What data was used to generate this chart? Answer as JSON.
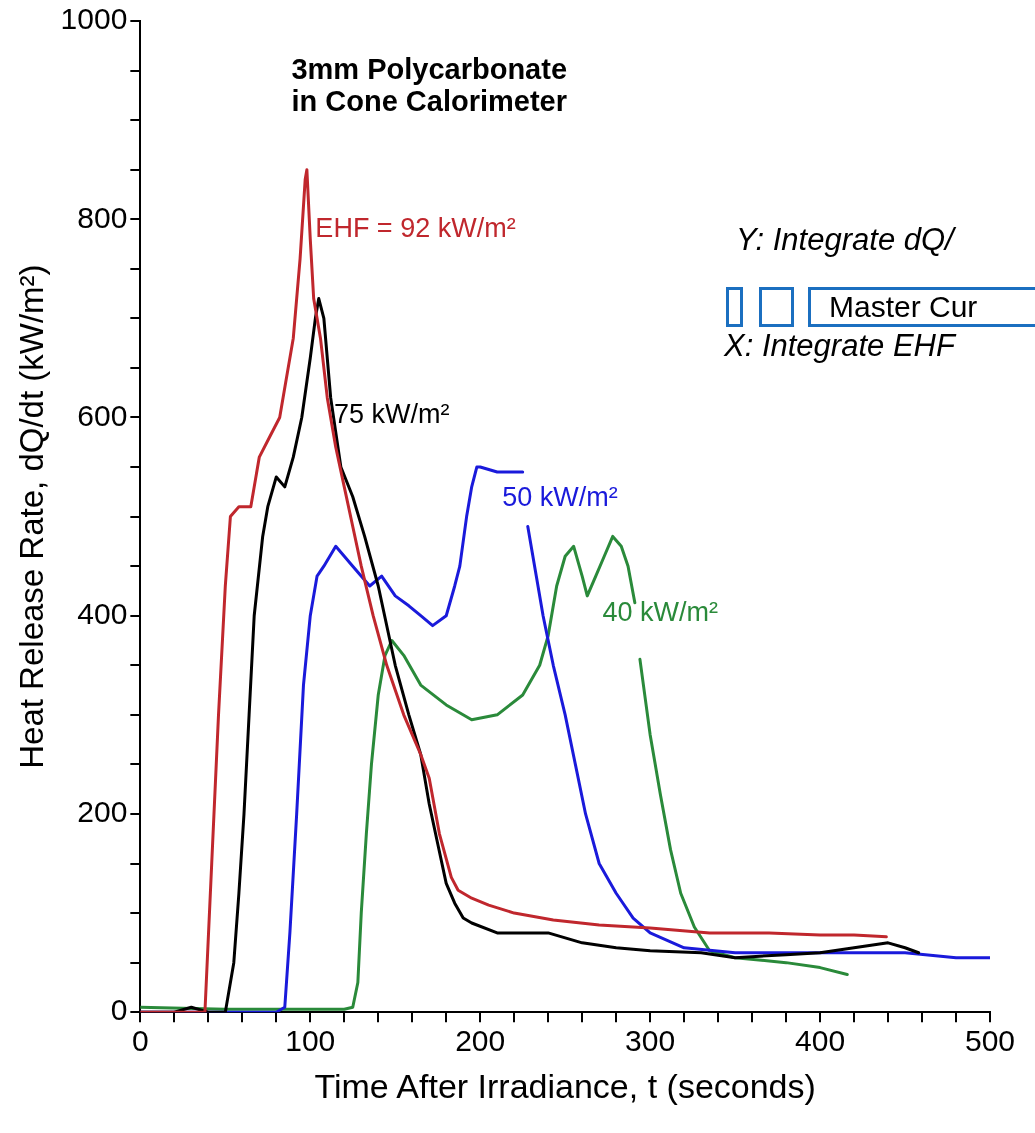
{
  "chart_data": {
    "type": "line",
    "title": "3mm Polycarbonate\nin Cone Calorimeter",
    "xlabel": "Time After Irradiance, t (seconds)",
    "ylabel": "Heat Release Rate, dQ/dt (kW/m²)",
    "xlim": [
      0,
      500
    ],
    "ylim": [
      0,
      1000
    ],
    "xticks": [
      0,
      {
        "value": 20,
        "label": null
      },
      {
        "value": 40,
        "label": null
      },
      {
        "value": 60,
        "label": null
      },
      {
        "value": 80,
        "label": null
      },
      100,
      {
        "value": 120,
        "label": null
      },
      {
        "value": 140,
        "label": null
      },
      {
        "value": 160,
        "label": null
      },
      {
        "value": 180,
        "label": null
      },
      200,
      {
        "value": 220,
        "label": null
      },
      {
        "value": 240,
        "label": null
      },
      {
        "value": 260,
        "label": null
      },
      {
        "value": 280,
        "label": null
      },
      300,
      {
        "value": 320,
        "label": null
      },
      {
        "value": 340,
        "label": null
      },
      {
        "value": 360,
        "label": null
      },
      {
        "value": 380,
        "label": null
      },
      400,
      {
        "value": 420,
        "label": null
      },
      {
        "value": 440,
        "label": null
      },
      {
        "value": 460,
        "label": null
      },
      {
        "value": 480,
        "label": null
      },
      500
    ],
    "yticks": [
      0,
      {
        "value": 50,
        "label": null
      },
      {
        "value": 100,
        "label": null
      },
      {
        "value": 150,
        "label": null
      },
      200,
      {
        "value": 250,
        "label": null
      },
      {
        "value": 300,
        "label": null
      },
      {
        "value": 350,
        "label": null
      },
      400,
      {
        "value": 450,
        "label": null
      },
      {
        "value": 500,
        "label": null
      },
      {
        "value": 550,
        "label": null
      },
      600,
      {
        "value": 650,
        "label": null
      },
      {
        "value": 700,
        "label": null
      },
      {
        "value": 750,
        "label": null
      },
      800,
      {
        "value": 850,
        "label": null
      },
      {
        "value": 900,
        "label": null
      },
      {
        "value": 950,
        "label": null
      },
      1000
    ],
    "grid": false,
    "legend": false,
    "marker": "none",
    "line_style": "solid",
    "annotations": [
      "Y: Integrate dQ/",
      "Master Cur",
      "X: Integrate EHF"
    ],
    "series": [
      {
        "name": "EHF = 92 kW/m²",
        "color": "#c0272d",
        "x": [
          0,
          20,
          38,
          42,
          46,
          50,
          53,
          58,
          65,
          70,
          76,
          82,
          86,
          90,
          94,
          97,
          98,
          100,
          102,
          106,
          110,
          115,
          120,
          125,
          130,
          137,
          145,
          155,
          165,
          170,
          176,
          183,
          187,
          195,
          205,
          220,
          243,
          270,
          300,
          335,
          370,
          400,
          420,
          439
        ],
        "values": [
          0,
          0,
          0,
          150,
          300,
          430,
          500,
          510,
          510,
          560,
          580,
          600,
          640,
          680,
          760,
          840,
          850,
          780,
          720,
          680,
          620,
          570,
          530,
          490,
          450,
          400,
          350,
          300,
          260,
          236,
          180,
          136,
          123,
          115,
          108,
          100,
          93,
          88,
          85,
          80,
          80,
          78,
          78,
          76
        ]
      },
      {
        "name": "75 kW/m²",
        "color": "#000000",
        "x": [
          0,
          20,
          30,
          40,
          50,
          55,
          58,
          61,
          64,
          67,
          72,
          75,
          80,
          85,
          90,
          95,
          100,
          103,
          105,
          108,
          112,
          118,
          125,
          132,
          140,
          150,
          158,
          165,
          170,
          175,
          180,
          185,
          190,
          195,
          210,
          240,
          260,
          280,
          300,
          330,
          350,
          380,
          400,
          420,
          440,
          450,
          458
        ],
        "values": [
          0,
          0,
          5,
          0,
          0,
          50,
          120,
          200,
          300,
          400,
          480,
          510,
          540,
          530,
          560,
          600,
          660,
          700,
          720,
          700,
          620,
          550,
          520,
          480,
          430,
          350,
          300,
          260,
          210,
          170,
          130,
          110,
          95,
          90,
          80,
          80,
          70,
          65,
          62,
          60,
          55,
          58,
          60,
          65,
          70,
          65,
          60
        ]
      },
      {
        "name": "50 kW/m²",
        "color": "#1a1adb",
        "x": [
          0,
          40,
          80,
          85,
          88,
          92,
          96,
          100,
          104,
          108,
          115,
          120,
          125,
          135,
          142,
          150,
          158,
          165,
          172,
          180,
          185,
          188,
          192,
          195,
          198,
          200,
          210,
          218,
          225,
          226.5,
          228,
          233,
          237,
          243,
          250,
          256,
          262,
          270,
          280,
          290,
          300,
          320,
          350,
          400,
          450,
          480,
          500
        ],
        "values": [
          0,
          0,
          0,
          5,
          80,
          200,
          330,
          400,
          440,
          450,
          470,
          460,
          450,
          430,
          440,
          420,
          410,
          400,
          390,
          400,
          430,
          450,
          500,
          530,
          550,
          550,
          545,
          545,
          545,
          null,
          490,
          440,
          400,
          350,
          300,
          250,
          200,
          150,
          120,
          95,
          80,
          65,
          60,
          60,
          60,
          55,
          55
        ]
      },
      {
        "name": "40 kW/m²",
        "color": "#2a8a3a",
        "x": [
          0,
          50,
          100,
          120,
          125,
          128,
          130,
          133,
          136,
          140,
          144,
          148,
          155,
          165,
          180,
          195,
          210,
          225,
          235,
          240,
          245,
          250,
          255,
          260,
          263,
          268,
          273,
          278,
          283,
          287,
          291,
          292.5,
          294,
          300,
          306,
          312,
          318,
          326,
          335,
          350,
          380,
          400,
          416
        ],
        "values": [
          5,
          3,
          3,
          3,
          5,
          30,
          100,
          180,
          250,
          320,
          360,
          375,
          360,
          330,
          310,
          295,
          300,
          320,
          350,
          380,
          430,
          460,
          470,
          440,
          420,
          440,
          460,
          480,
          470,
          450,
          413,
          null,
          356,
          280,
          220,
          164,
          120,
          86,
          62,
          55,
          50,
          45,
          38
        ]
      }
    ]
  }
}
